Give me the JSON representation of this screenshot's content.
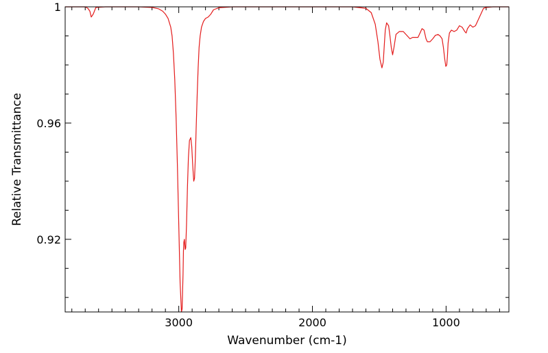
{
  "chart_data": {
    "type": "line",
    "title": "",
    "xlabel": "Wavenumber (cm-1)",
    "ylabel": "Relative Transmittance",
    "x_reversed": true,
    "xlim": [
      3850,
      530
    ],
    "ylim": [
      0.895,
      1.0
    ],
    "x_ticks": [
      3000,
      2000,
      1000
    ],
    "x_tick_labels": [
      "3000",
      "2000",
      "1000"
    ],
    "y_ticks": [
      0.92,
      0.96,
      1.0
    ],
    "y_tick_labels": [
      "0.92",
      "0.96",
      "1"
    ],
    "grid": false,
    "legend": "none",
    "series": [
      {
        "color": "#e31a1a",
        "x": [
          3850,
          3780,
          3700,
          3680,
          3665,
          3655,
          3640,
          3620,
          3550,
          3400,
          3300,
          3200,
          3150,
          3120,
          3100,
          3080,
          3060,
          3050,
          3040,
          3030,
          3020,
          3010,
          3000,
          2990,
          2980,
          2975,
          2968,
          2965,
          2962,
          2958,
          2952,
          2948,
          2942,
          2935,
          2928,
          2920,
          2910,
          2903,
          2895,
          2888,
          2882,
          2876,
          2870,
          2862,
          2855,
          2848,
          2840,
          2830,
          2815,
          2800,
          2780,
          2760,
          2740,
          2700,
          2600,
          2400,
          2200,
          2000,
          1800,
          1700,
          1600,
          1560,
          1530,
          1510,
          1495,
          1480,
          1470,
          1462,
          1455,
          1445,
          1430,
          1420,
          1410,
          1400,
          1390,
          1375,
          1350,
          1320,
          1300,
          1290,
          1270,
          1250,
          1230,
          1210,
          1195,
          1180,
          1165,
          1150,
          1140,
          1120,
          1100,
          1080,
          1060,
          1045,
          1030,
          1020,
          1010,
          1002,
          995,
          990,
          985,
          975,
          960,
          940,
          920,
          900,
          880,
          860,
          850,
          840,
          820,
          800,
          780,
          760,
          740,
          720,
          700,
          650,
          600,
          530
        ],
        "y": [
          1.0,
          1.0,
          1.0,
          0.9995,
          0.9985,
          0.9965,
          0.9975,
          0.9998,
          1.0,
          1.0,
          1.0,
          0.9998,
          0.9993,
          0.9985,
          0.9975,
          0.996,
          0.993,
          0.99,
          0.984,
          0.975,
          0.962,
          0.945,
          0.925,
          0.905,
          0.895,
          0.896,
          0.908,
          0.916,
          0.919,
          0.92,
          0.9165,
          0.917,
          0.925,
          0.938,
          0.948,
          0.954,
          0.955,
          0.952,
          0.945,
          0.94,
          0.941,
          0.948,
          0.958,
          0.97,
          0.979,
          0.986,
          0.99,
          0.993,
          0.995,
          0.996,
          0.9965,
          0.9975,
          0.999,
          0.9997,
          1.0,
          1.0,
          1.0,
          1.0,
          1.0,
          1.0,
          0.9995,
          0.998,
          0.994,
          0.988,
          0.982,
          0.979,
          0.981,
          0.987,
          0.992,
          0.9945,
          0.9935,
          0.99,
          0.986,
          0.9835,
          0.986,
          0.9905,
          0.9915,
          0.9915,
          0.9905,
          0.99,
          0.989,
          0.9895,
          0.9895,
          0.9895,
          0.991,
          0.9925,
          0.992,
          0.989,
          0.988,
          0.988,
          0.989,
          0.9902,
          0.9905,
          0.99,
          0.989,
          0.986,
          0.982,
          0.9795,
          0.98,
          0.983,
          0.9875,
          0.991,
          0.992,
          0.9915,
          0.992,
          0.9935,
          0.993,
          0.9915,
          0.991,
          0.9925,
          0.9938,
          0.993,
          0.9935,
          0.9955,
          0.9975,
          0.9995,
          0.9998,
          1.0,
          1.0,
          1.0
        ]
      }
    ]
  }
}
